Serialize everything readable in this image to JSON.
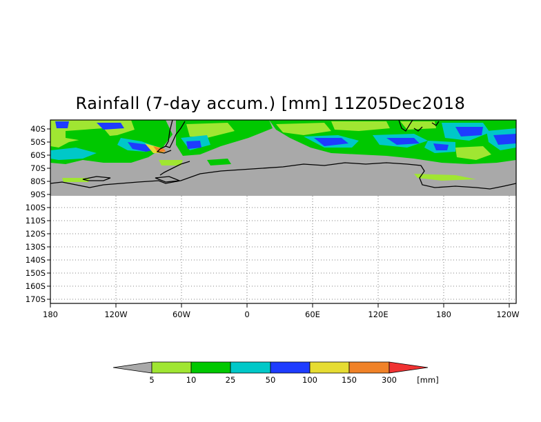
{
  "title": "Rainfall (7-day accum.) [mm] 11Z05Dec2018",
  "map": {
    "projection": "cylindrical",
    "lon_range": [
      -180,
      300
    ],
    "lat_range": [
      -35,
      -172
    ],
    "lat_ticks": [
      "40S",
      "50S",
      "60S",
      "70S",
      "80S",
      "90S",
      "100S",
      "110S",
      "120S",
      "130S",
      "140S",
      "150S",
      "160S",
      "170S"
    ],
    "lon_ticks": [
      "180",
      "120W",
      "60W",
      "0",
      "60E",
      "120E",
      "180",
      "120W"
    ],
    "grid": "dotted",
    "data_extent": "data shown only from about 35S to 90S; no data area shaded grey",
    "colors": {
      "no_data": "#a9a9a9",
      "land_outline": "#000000"
    }
  },
  "legend": {
    "unit": "[mm]",
    "labels": [
      "5",
      "10",
      "25",
      "50",
      "100",
      "150",
      "300"
    ],
    "bins": [
      {
        "color": "#a0e632",
        "range": "5-10"
      },
      {
        "color": "#00c800",
        "range": "10-25"
      },
      {
        "color": "#00c8c8",
        "range": "25-50"
      },
      {
        "color": "#1e3cff",
        "range": "50-100"
      },
      {
        "color": "#e6dc32",
        "range": "100-150"
      },
      {
        "color": "#f08228",
        "range": "150-300"
      }
    ],
    "under_color": "#a9a9a9",
    "over_color": "#f03232"
  }
}
